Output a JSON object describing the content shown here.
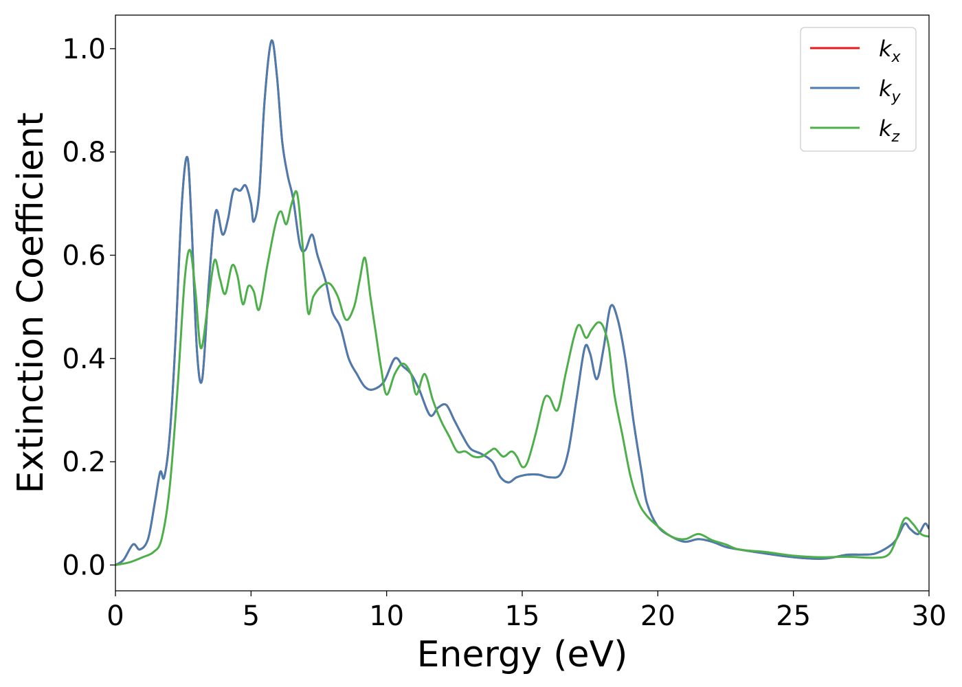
{
  "chart_data": {
    "type": "line",
    "title": "",
    "xlabel": "Energy (eV)",
    "ylabel": "Extinction Coefficient",
    "xlim": [
      0,
      30
    ],
    "ylim": [
      -0.05,
      1.065
    ],
    "x_ticks": [
      0,
      5,
      10,
      15,
      20,
      25,
      30
    ],
    "x_tick_labels": [
      "0",
      "5",
      "10",
      "15",
      "20",
      "25",
      "30"
    ],
    "y_ticks": [
      0.0,
      0.2,
      0.4,
      0.6,
      0.8,
      1.0
    ],
    "y_tick_labels": [
      "0.0",
      "0.2",
      "0.4",
      "0.6",
      "0.8",
      "1.0"
    ],
    "grid": false,
    "legend_position": "top-right",
    "series": [
      {
        "name": "k",
        "subscript": "x",
        "color": "#e41a1c",
        "x": [
          0,
          0.3,
          0.65,
          0.9,
          1.2,
          1.45,
          1.65,
          1.8,
          2.0,
          2.2,
          2.45,
          2.65,
          2.8,
          3.0,
          3.2,
          3.45,
          3.7,
          3.95,
          4.15,
          4.35,
          4.6,
          4.8,
          5.0,
          5.1,
          5.3,
          5.5,
          5.75,
          5.95,
          6.15,
          6.35,
          6.55,
          6.8,
          7.0,
          7.25,
          7.45,
          7.75,
          8.0,
          8.3,
          8.6,
          8.9,
          9.2,
          9.5,
          9.9,
          10.3,
          10.6,
          10.9,
          11.2,
          11.6,
          11.9,
          12.2,
          12.5,
          12.8,
          13.1,
          13.5,
          13.9,
          14.2,
          14.5,
          14.8,
          15.2,
          15.6,
          16.0,
          16.4,
          16.7,
          17.0,
          17.3,
          17.5,
          17.75,
          18.0,
          18.25,
          18.5,
          18.8,
          19.1,
          19.4,
          19.6,
          20.0,
          20.5,
          21.0,
          21.5,
          22.0,
          22.5,
          23.0,
          24.0,
          25.0,
          26.0,
          26.5,
          27.0,
          27.5,
          28.0,
          28.5,
          28.8,
          29.1,
          29.3,
          29.6,
          29.85,
          30.0
        ],
        "y": [
          0.0,
          0.01,
          0.04,
          0.03,
          0.05,
          0.12,
          0.18,
          0.17,
          0.25,
          0.42,
          0.7,
          0.79,
          0.67,
          0.42,
          0.36,
          0.55,
          0.685,
          0.64,
          0.67,
          0.725,
          0.725,
          0.735,
          0.7,
          0.665,
          0.72,
          0.9,
          1.015,
          0.95,
          0.82,
          0.755,
          0.71,
          0.62,
          0.61,
          0.64,
          0.6,
          0.55,
          0.49,
          0.46,
          0.4,
          0.37,
          0.345,
          0.34,
          0.355,
          0.4,
          0.385,
          0.37,
          0.34,
          0.29,
          0.305,
          0.31,
          0.28,
          0.25,
          0.225,
          0.215,
          0.2,
          0.17,
          0.16,
          0.17,
          0.175,
          0.175,
          0.17,
          0.175,
          0.22,
          0.32,
          0.42,
          0.41,
          0.36,
          0.42,
          0.5,
          0.48,
          0.4,
          0.28,
          0.18,
          0.12,
          0.075,
          0.055,
          0.045,
          0.05,
          0.045,
          0.035,
          0.03,
          0.022,
          0.015,
          0.012,
          0.015,
          0.02,
          0.02,
          0.022,
          0.035,
          0.05,
          0.08,
          0.07,
          0.06,
          0.08,
          0.07
        ]
      },
      {
        "name": "k",
        "subscript": "y",
        "color": "#4a7cb0",
        "x": [
          0,
          0.3,
          0.65,
          0.9,
          1.2,
          1.45,
          1.65,
          1.8,
          2.0,
          2.2,
          2.45,
          2.65,
          2.8,
          3.0,
          3.2,
          3.45,
          3.7,
          3.95,
          4.15,
          4.35,
          4.6,
          4.8,
          5.0,
          5.1,
          5.3,
          5.5,
          5.75,
          5.95,
          6.15,
          6.35,
          6.55,
          6.8,
          7.0,
          7.25,
          7.45,
          7.75,
          8.0,
          8.3,
          8.6,
          8.9,
          9.2,
          9.5,
          9.9,
          10.3,
          10.6,
          10.9,
          11.2,
          11.6,
          11.9,
          12.2,
          12.5,
          12.8,
          13.1,
          13.5,
          13.9,
          14.2,
          14.5,
          14.8,
          15.2,
          15.6,
          16.0,
          16.4,
          16.7,
          17.0,
          17.3,
          17.5,
          17.75,
          18.0,
          18.25,
          18.5,
          18.8,
          19.1,
          19.4,
          19.6,
          20.0,
          20.5,
          21.0,
          21.5,
          22.0,
          22.5,
          23.0,
          24.0,
          25.0,
          26.0,
          26.5,
          27.0,
          27.5,
          28.0,
          28.5,
          28.8,
          29.1,
          29.3,
          29.6,
          29.85,
          30.0
        ],
        "y": [
          0.0,
          0.01,
          0.04,
          0.03,
          0.05,
          0.12,
          0.18,
          0.17,
          0.25,
          0.42,
          0.7,
          0.79,
          0.67,
          0.42,
          0.36,
          0.55,
          0.685,
          0.64,
          0.67,
          0.725,
          0.725,
          0.735,
          0.7,
          0.665,
          0.72,
          0.9,
          1.015,
          0.95,
          0.82,
          0.755,
          0.71,
          0.62,
          0.61,
          0.64,
          0.6,
          0.55,
          0.49,
          0.46,
          0.4,
          0.37,
          0.345,
          0.34,
          0.355,
          0.4,
          0.385,
          0.37,
          0.34,
          0.29,
          0.305,
          0.31,
          0.28,
          0.25,
          0.225,
          0.215,
          0.2,
          0.17,
          0.16,
          0.17,
          0.175,
          0.175,
          0.17,
          0.175,
          0.22,
          0.32,
          0.42,
          0.41,
          0.36,
          0.42,
          0.5,
          0.48,
          0.4,
          0.28,
          0.18,
          0.12,
          0.075,
          0.055,
          0.045,
          0.05,
          0.045,
          0.035,
          0.03,
          0.022,
          0.015,
          0.012,
          0.015,
          0.02,
          0.02,
          0.022,
          0.035,
          0.05,
          0.08,
          0.07,
          0.06,
          0.08,
          0.07
        ]
      },
      {
        "name": "k",
        "subscript": "z",
        "color": "#4daf4a",
        "x": [
          0,
          0.5,
          1.0,
          1.4,
          1.7,
          2.0,
          2.3,
          2.55,
          2.75,
          2.95,
          3.15,
          3.4,
          3.65,
          3.85,
          4.05,
          4.3,
          4.5,
          4.7,
          4.9,
          5.1,
          5.3,
          5.6,
          5.9,
          6.1,
          6.3,
          6.5,
          6.7,
          6.9,
          7.1,
          7.3,
          7.6,
          7.9,
          8.2,
          8.5,
          8.8,
          9.0,
          9.2,
          9.4,
          9.6,
          9.8,
          10.0,
          10.3,
          10.6,
          10.9,
          11.1,
          11.4,
          11.7,
          12.0,
          12.3,
          12.6,
          12.9,
          13.2,
          13.5,
          13.8,
          14.0,
          14.3,
          14.6,
          14.8,
          15.0,
          15.2,
          15.5,
          15.8,
          16.0,
          16.3,
          16.6,
          16.9,
          17.1,
          17.35,
          17.55,
          17.8,
          18.0,
          18.2,
          18.4,
          18.7,
          19.0,
          19.3,
          19.6,
          20.0,
          20.5,
          21.0,
          21.5,
          22.0,
          22.5,
          23.0,
          24.0,
          25.0,
          26.0,
          27.0,
          28.0,
          28.5,
          28.8,
          29.1,
          29.4,
          29.7,
          30.0
        ],
        "y": [
          0.0,
          0.005,
          0.015,
          0.025,
          0.05,
          0.15,
          0.35,
          0.55,
          0.61,
          0.53,
          0.42,
          0.5,
          0.59,
          0.555,
          0.525,
          0.58,
          0.56,
          0.505,
          0.54,
          0.53,
          0.495,
          0.58,
          0.66,
          0.685,
          0.66,
          0.7,
          0.72,
          0.62,
          0.49,
          0.52,
          0.54,
          0.545,
          0.52,
          0.475,
          0.5,
          0.55,
          0.595,
          0.52,
          0.45,
          0.38,
          0.33,
          0.37,
          0.39,
          0.37,
          0.33,
          0.37,
          0.32,
          0.28,
          0.25,
          0.22,
          0.22,
          0.21,
          0.21,
          0.22,
          0.225,
          0.21,
          0.22,
          0.21,
          0.19,
          0.2,
          0.255,
          0.32,
          0.325,
          0.3,
          0.37,
          0.44,
          0.465,
          0.44,
          0.455,
          0.47,
          0.46,
          0.42,
          0.33,
          0.25,
          0.17,
          0.12,
          0.095,
          0.075,
          0.055,
          0.05,
          0.06,
          0.048,
          0.04,
          0.03,
          0.025,
          0.018,
          0.015,
          0.016,
          0.014,
          0.02,
          0.05,
          0.09,
          0.08,
          0.06,
          0.055
        ]
      }
    ]
  }
}
